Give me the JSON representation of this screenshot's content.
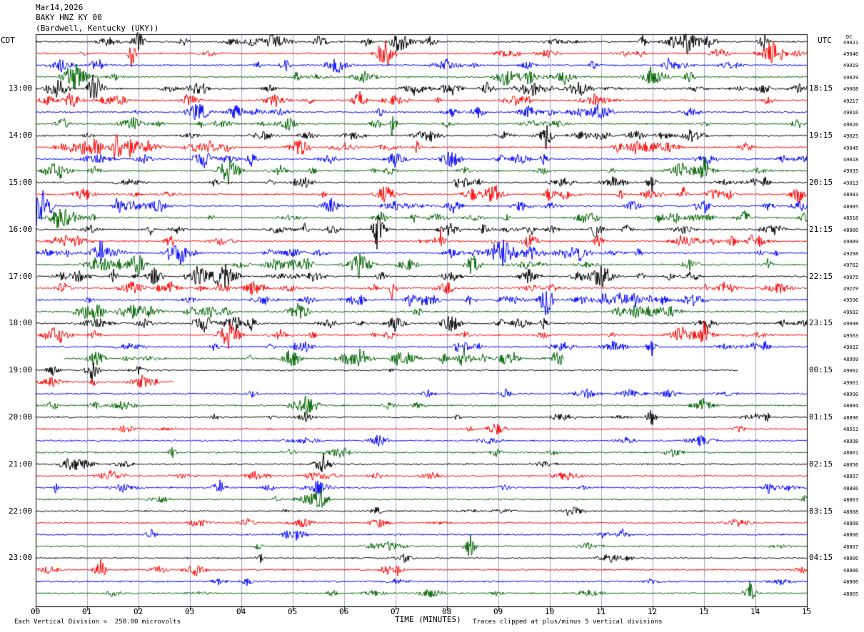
{
  "header": {
    "date": "Mar14,2026",
    "station": "BAKY HNZ KY 00",
    "location": "(Bardwell, Kentucky (UKY))"
  },
  "axes": {
    "left_label": "CDT",
    "right_label": "UTC",
    "right_top": "DC",
    "xlabel": "TIME (MINUTES)",
    "x_ticks": [
      "00",
      "01",
      "02",
      "03",
      "04",
      "05",
      "06",
      "07",
      "08",
      "09",
      "10",
      "11",
      "12",
      "13",
      "14",
      "15"
    ]
  },
  "footer": {
    "scale_note": "Each Vertical Division =  250.00 microvolts",
    "clip_note": "Traces clipped at plus/minus 5 vertical divisions"
  },
  "colors": {
    "black": "#000000",
    "red": "#ff0000",
    "blue": "#0000ff",
    "green": "#006400",
    "grid": "#6a6aaa"
  },
  "chart_data": {
    "type": "line",
    "title": "",
    "xlabel": "TIME (MINUTES)",
    "xlim": [
      0,
      15
    ],
    "grid": true,
    "color_cycle": [
      "black",
      "red",
      "blue",
      "green"
    ],
    "hour_labels_left": [
      "13:00",
      "14:00",
      "15:00",
      "16:00",
      "17:00",
      "18:00",
      "19:00",
      "20:00",
      "21:00",
      "22:00",
      "23:00"
    ],
    "hour_labels_right": [
      "18:15",
      "19:15",
      "20:15",
      "21:15",
      "22:15",
      "23:15",
      "00:15",
      "01:15",
      "02:15",
      "03:15",
      "04:15"
    ],
    "dc_offsets": [
      "49021",
      "49046",
      "49019",
      "49029",
      "49068",
      "49217",
      "49016",
      "49026",
      "49025",
      "49045",
      "49018",
      "49035",
      "49013",
      "48983",
      "48985",
      "48518",
      "48880",
      "49089",
      "49208",
      "49762",
      "49075",
      "49279",
      "49596",
      "49582",
      "49098",
      "49563",
      "49022",
      "48999",
      "49002",
      "49001",
      "48990",
      "48884",
      "48896",
      "48553",
      "48898",
      "48801",
      "48856",
      "48897",
      "48806",
      "48803",
      "48808",
      "48808",
      "48806",
      "48807",
      "48806",
      "48806",
      "48806",
      "48805"
    ]
  }
}
